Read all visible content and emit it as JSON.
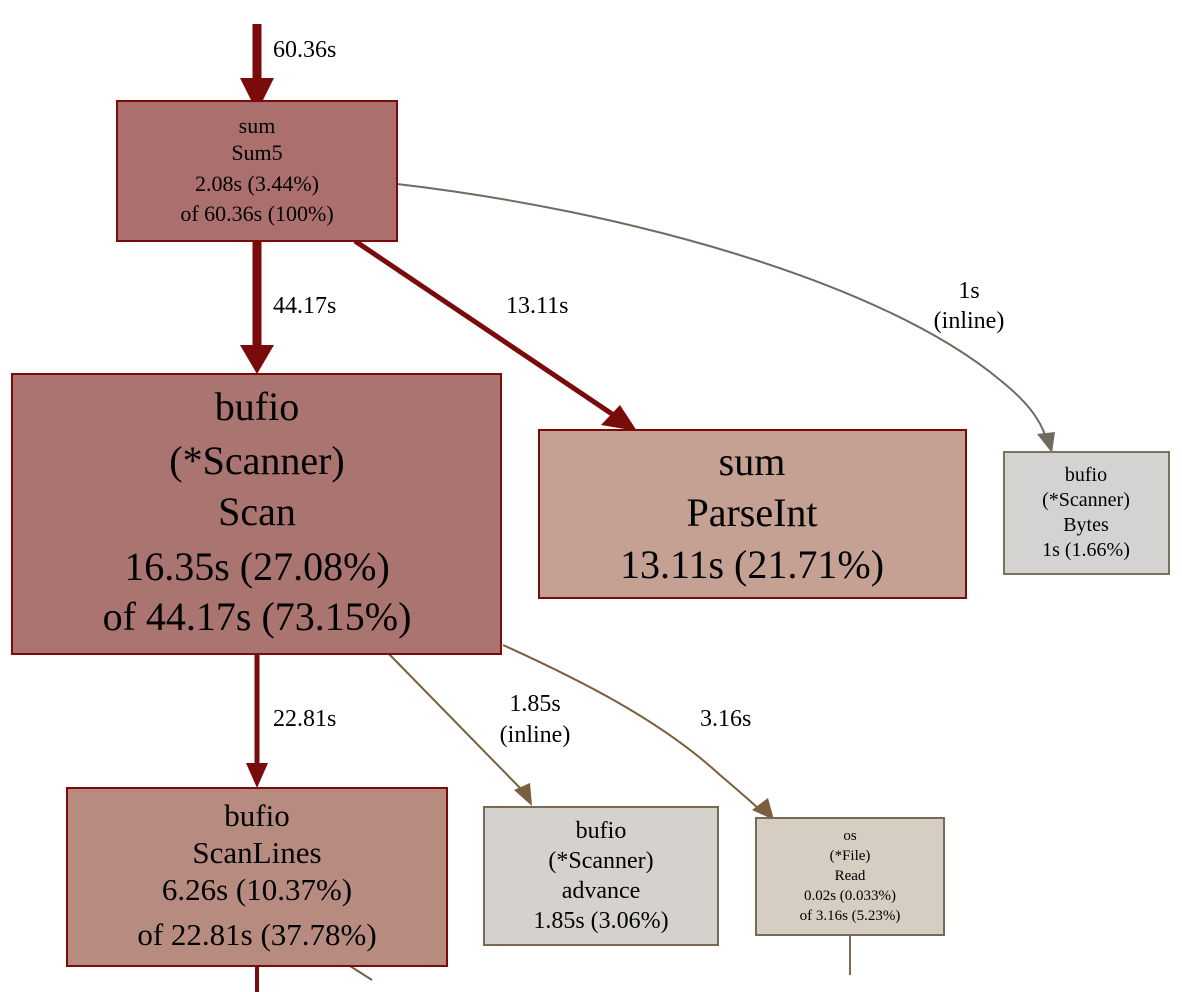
{
  "colors": {
    "background": "#ffffff",
    "hot_edge": "#7a0b0b",
    "warm_edge": "#7a5f3e",
    "cool_edge": "#6f6b60",
    "border_hot": "#7a0b0b",
    "border_cool": "#767461"
  },
  "nodes": [
    {
      "id": "sum5",
      "lines": [
        "sum",
        "Sum5",
        "2.08s (3.44%)",
        "of 60.36s (100%)"
      ],
      "fill": "#ab706d",
      "stroke": "#7a0b0b"
    },
    {
      "id": "scan",
      "lines": [
        "bufio",
        "(*Scanner)",
        "Scan",
        "16.35s (27.08%)",
        "of 44.17s (73.15%)"
      ],
      "fill": "#aa7470",
      "stroke": "#7a0b0b"
    },
    {
      "id": "parseint",
      "lines": [
        "sum",
        "ParseInt",
        "13.11s (21.71%)"
      ],
      "fill": "#c5a194",
      "stroke": "#7a0b0b"
    },
    {
      "id": "bytes",
      "lines": [
        "bufio",
        "(*Scanner)",
        "Bytes",
        "1s (1.66%)"
      ],
      "fill": "#d4d3d1",
      "stroke": "#767461"
    },
    {
      "id": "scanlines",
      "lines": [
        "bufio",
        "ScanLines",
        "6.26s (10.37%)",
        "of 22.81s (37.78%)"
      ],
      "fill": "#b78b80",
      "stroke": "#7a0b0b"
    },
    {
      "id": "advance",
      "lines": [
        "bufio",
        "(*Scanner)",
        "advance",
        "1.85s (3.06%)"
      ],
      "fill": "#d5d2cd",
      "stroke": "#7a6a55"
    },
    {
      "id": "fileread",
      "lines": [
        "os",
        "(*File)",
        "Read",
        "0.02s (0.033%)",
        "of 3.16s (5.23%)"
      ],
      "fill": "#d7cec3",
      "stroke": "#7a6a55"
    }
  ],
  "edges": [
    {
      "id": "in-sum5",
      "label": [
        "60.36s"
      ]
    },
    {
      "id": "sum5-scan",
      "label": [
        "44.17s"
      ]
    },
    {
      "id": "sum5-parseint",
      "label": [
        "13.11s"
      ]
    },
    {
      "id": "sum5-bytes",
      "label": [
        "1s",
        "(inline)"
      ]
    },
    {
      "id": "scan-scanlines",
      "label": [
        "22.81s"
      ]
    },
    {
      "id": "scan-advance",
      "label": [
        "1.85s",
        "(inline)"
      ]
    },
    {
      "id": "scan-fileread",
      "label": [
        "3.16s"
      ]
    },
    {
      "id": "scanlines-out",
      "label": []
    },
    {
      "id": "fileread-out",
      "label": []
    }
  ]
}
